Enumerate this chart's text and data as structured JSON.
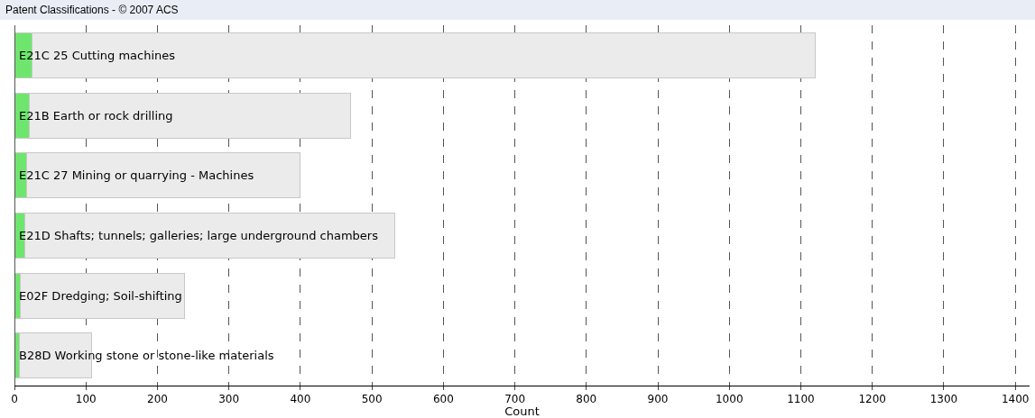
{
  "chart_data": {
    "type": "bar",
    "title": "Patent Classifications - © 2007 ACS",
    "xlabel": "Count",
    "orientation": "horizontal",
    "stacked": true,
    "categories": [
      "E21C 25 Cutting machines",
      "E21B Earth or rock drilling",
      "E21C 27 Mining or quarrying - Machines",
      "E21D Shafts; tunnels; galleries; large underground chambers",
      "E02F Dredging; Soil-shifting",
      "B28D Working stone or stone-like materials"
    ],
    "series": [
      {
        "color": "#6ee66e",
        "values": [
          25,
          21,
          17,
          15,
          8,
          7
        ]
      },
      {
        "color": "#ebebeb",
        "values": [
          1095,
          449,
          383,
          517,
          230,
          101
        ]
      }
    ],
    "xlim": [
      0,
      1420
    ],
    "xticks": [
      0,
      100,
      200,
      300,
      400,
      500,
      600,
      700,
      800,
      900,
      1000,
      1100,
      1200,
      1300,
      1400
    ],
    "grid": "x",
    "line_style": "dashed"
  }
}
